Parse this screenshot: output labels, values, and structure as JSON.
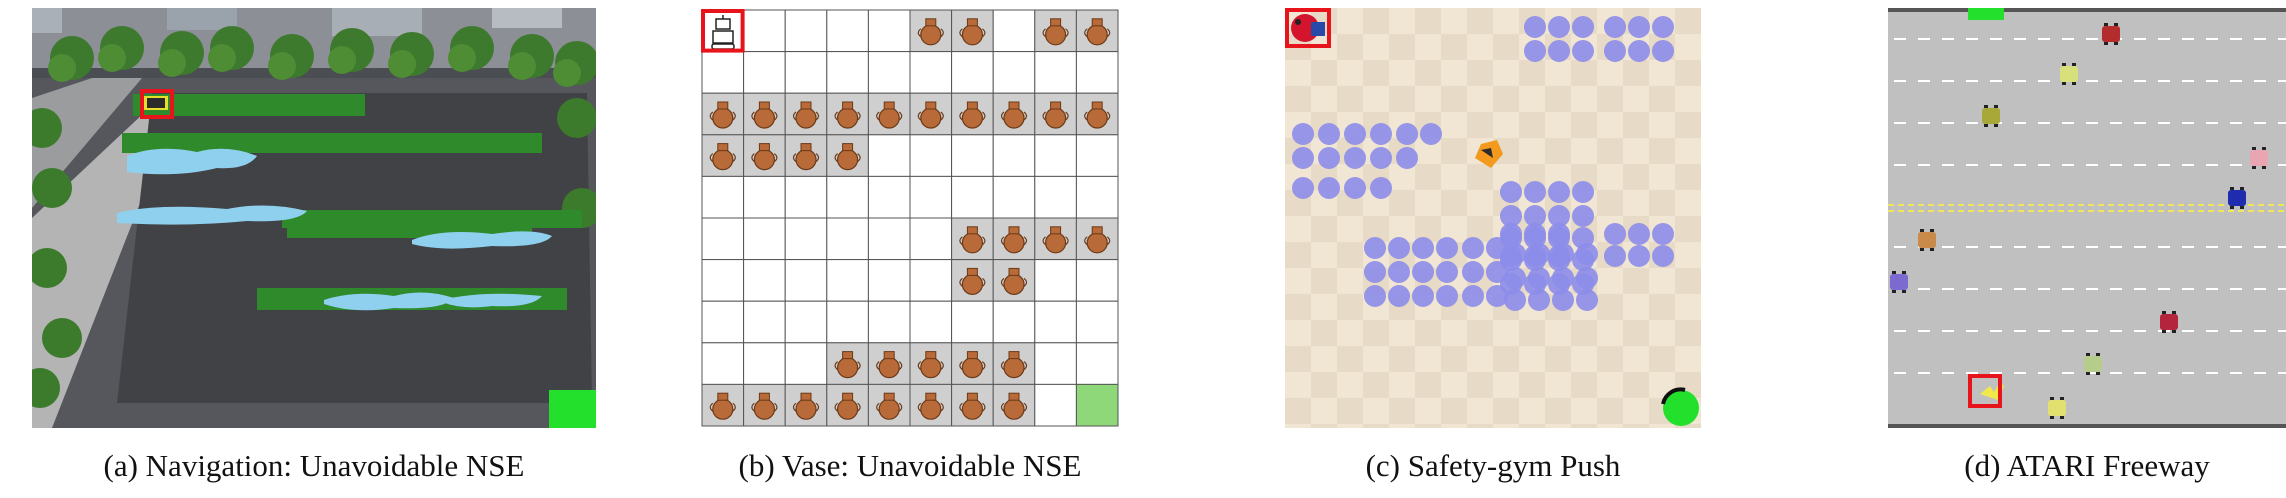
{
  "panels": [
    {
      "id": "a",
      "caption": "(a) Navigation: Unavoidable NSE",
      "icons": [
        "robot-car-icon",
        "goal-tile-icon",
        "puddle-icon",
        "tree-icon"
      ]
    },
    {
      "id": "b",
      "caption": "(b) Vase: Unavoidable NSE",
      "icons": [
        "robot-icon",
        "vase-icon",
        "goal-cell-icon"
      ]
    },
    {
      "id": "c",
      "caption": "(c) Safety-gym Push",
      "icons": [
        "push-robot-icon",
        "hazard-icon",
        "box-icon",
        "goal-circle-icon"
      ]
    },
    {
      "id": "d",
      "caption": "(d) ATARI Freeway",
      "icons": [
        "chicken-icon",
        "car-icon",
        "finish-bar-icon"
      ]
    }
  ],
  "colors": {
    "highlight": "#e8141c",
    "grass": "#2f8a2c",
    "water": "#8fd0ee",
    "goal_green": "#22e02b",
    "vase_gray": "#cfcfcf",
    "vase_orange": "#b86a38",
    "goal_cell": "#8fd87a",
    "hazard": "#8c8cea",
    "checker_a": "#f1e6d4",
    "checker_b": "#e7dac6",
    "road": "#c0c0c0",
    "lane_dash": "#ffffff",
    "median": "#f2e75a"
  }
}
